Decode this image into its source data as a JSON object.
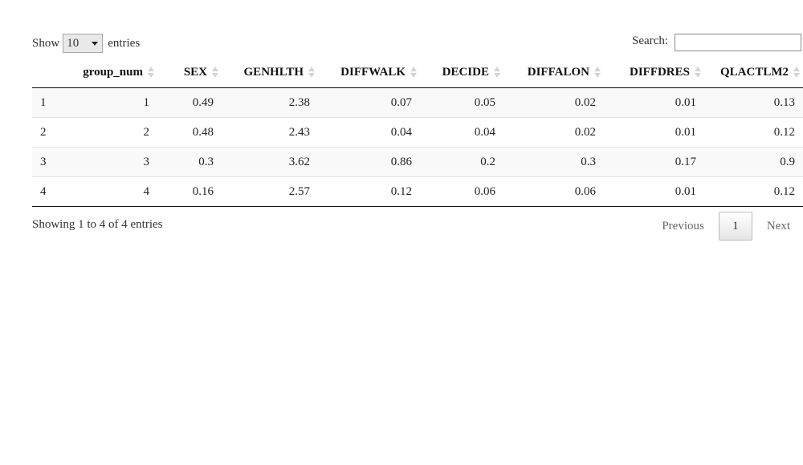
{
  "controls": {
    "show_label": "Show",
    "length_value": "10",
    "entries_label": "entries",
    "search_label": "Search:",
    "search_value": ""
  },
  "table": {
    "columns": [
      "",
      "group_num",
      "SEX",
      "GENHLTH",
      "DIFFWALK",
      "DECIDE",
      "DIFFALON",
      "DIFFDRES",
      "QLACTLM2"
    ],
    "rows": [
      [
        "1",
        "1",
        "0.49",
        "2.38",
        "0.07",
        "0.05",
        "0.02",
        "0.01",
        "0.13"
      ],
      [
        "2",
        "2",
        "0.48",
        "2.43",
        "0.04",
        "0.04",
        "0.02",
        "0.01",
        "0.12"
      ],
      [
        "3",
        "3",
        "0.3",
        "3.62",
        "0.86",
        "0.2",
        "0.3",
        "0.17",
        "0.9"
      ],
      [
        "4",
        "4",
        "0.16",
        "2.57",
        "0.12",
        "0.06",
        "0.06",
        "0.01",
        "0.12"
      ]
    ]
  },
  "footer": {
    "info": "Showing 1 to 4 of 4 entries",
    "previous_label": "Previous",
    "current_page": "1",
    "next_label": "Next"
  }
}
